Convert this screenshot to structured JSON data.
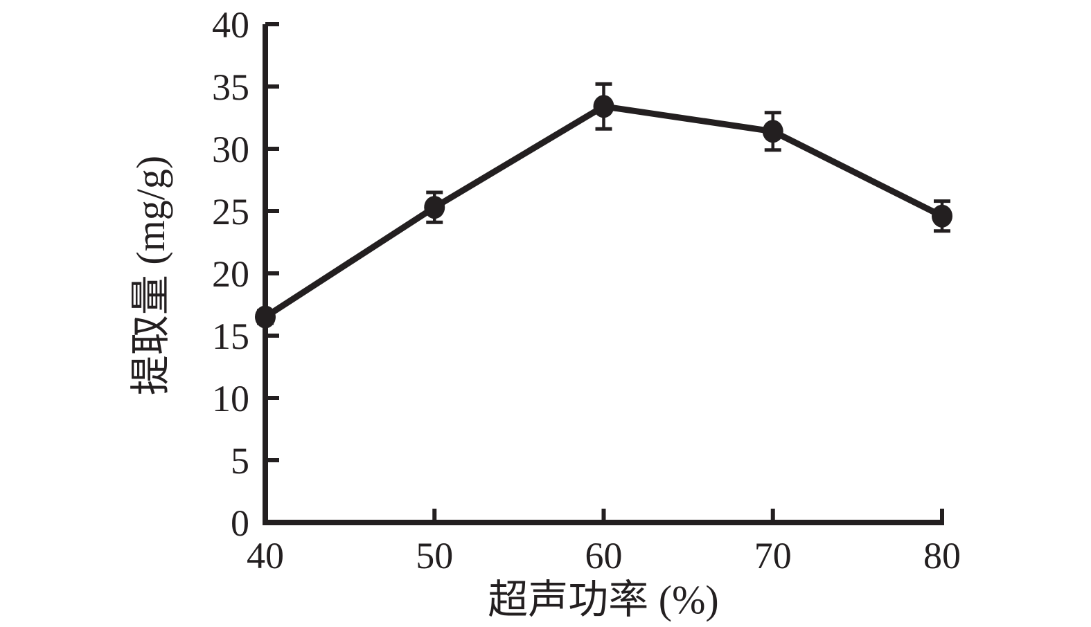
{
  "figure": {
    "background": "#ffffff",
    "ink_color": "#231f20"
  },
  "chart_data": {
    "type": "line",
    "x": [
      40,
      50,
      60,
      70,
      80
    ],
    "values": [
      16.5,
      25.3,
      33.4,
      31.4,
      24.6
    ],
    "error_bars": [
      0.5,
      1.2,
      1.8,
      1.5,
      1.2
    ],
    "title": "",
    "xlabel": "超声功率 (%)",
    "ylabel": "提取量 (mg/g)",
    "xlim": [
      40,
      80
    ],
    "ylim": [
      0,
      40
    ],
    "xticks": [
      40,
      50,
      60,
      70,
      80
    ],
    "yticks": [
      0,
      5,
      10,
      15,
      20,
      25,
      30,
      35,
      40
    ],
    "grid": false,
    "legend": false,
    "marker": "filled-circle",
    "line_color": "#231f20"
  }
}
